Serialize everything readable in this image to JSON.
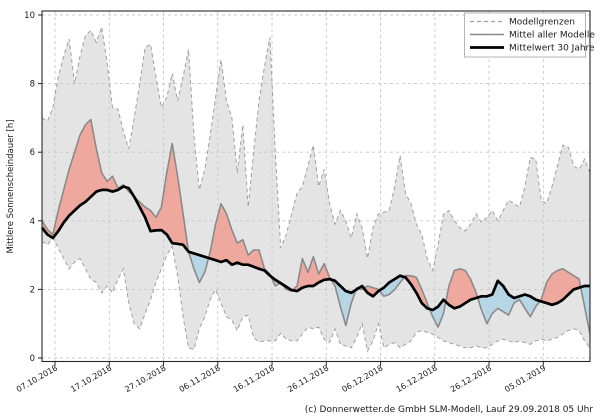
{
  "figure": {
    "ylabel": "Mittlere Sonnenscheindauer [h]",
    "caption": "(c) Donnerwetter.de GmbH SLM-Modell, Lauf 29.09.2018 05 Uhr"
  },
  "legend": {
    "entries": [
      {
        "label": "Modellgrenzen",
        "style": "dashed-gray"
      },
      {
        "label": "Mittel aller Modelle",
        "style": "solid-gray"
      },
      {
        "label": "Mittelwert 30 Jahre",
        "style": "solid-black-thick"
      }
    ]
  },
  "colors": {
    "band_fill": "#e4e4e4",
    "band_edge": "#a0a0a0",
    "above_fill": "#efa89e",
    "below_fill": "#b6d6e6",
    "model_mean_line": "#8a8a8a",
    "climate_mean_line": "#000000",
    "grid": "#c8c8c8",
    "spine": "#262626"
  },
  "chart_data": {
    "type": "line",
    "title": "",
    "xlabel": "",
    "ylabel": "Mittlere Sonnenscheindauer [h]",
    "ylim": [
      0,
      10
    ],
    "yticks": [
      0,
      2,
      4,
      6,
      8,
      10
    ],
    "grid": true,
    "legend_position": "upper right",
    "x_unit": "day",
    "x_start_date": "05.10.2018",
    "x_end_date": "14.01.2019",
    "x_tick_labels": [
      "07.10.2018",
      "17.10.2018",
      "27.10.2018",
      "06.11.2018",
      "16.11.2018",
      "26.11.2018",
      "06.12.2018",
      "16.12.2018",
      "26.12.2018",
      "05.01.2019"
    ],
    "x_tick_day_offsets": [
      2.4,
      12.4,
      22.4,
      32.4,
      42.4,
      52.4,
      62.4,
      72.4,
      82.4,
      92.4
    ],
    "fills": {
      "band_between": [
        "Modellgrenzen Maximum",
        "Modellgrenzen Minimum"
      ],
      "above_rule": "Mittel aller Modelle > Mittelwert 30 Jahre (rot)",
      "below_rule": "Mittel aller Modelle < Mittelwert 30 Jahre (blau)"
    },
    "series": [
      {
        "name": "Modellgrenzen Maximum",
        "style": "dashed",
        "values": [
          7.0,
          6.9,
          7.3,
          8.2,
          8.8,
          9.3,
          8.0,
          8.8,
          9.4,
          9.55,
          9.2,
          9.65,
          8.6,
          7.3,
          7.25,
          6.6,
          6.1,
          7.0,
          8.0,
          9.05,
          9.15,
          8.2,
          7.3,
          7.6,
          8.3,
          7.5,
          8.2,
          9.0,
          6.5,
          4.9,
          5.5,
          6.5,
          7.6,
          8.7,
          7.5,
          7.0,
          5.4,
          6.8,
          4.4,
          6.0,
          7.5,
          8.5,
          9.35,
          6.0,
          3.2,
          3.6,
          4.2,
          4.8,
          5.0,
          5.6,
          6.2,
          5.0,
          5.5,
          4.5,
          3.9,
          4.3,
          4.0,
          3.5,
          4.2,
          3.8,
          2.9,
          3.8,
          4.2,
          4.25,
          4.3,
          5.0,
          5.9,
          4.8,
          4.5,
          3.9,
          3.6,
          2.9,
          2.55,
          3.3,
          4.2,
          4.3,
          4.0,
          3.8,
          3.7,
          3.9,
          4.2,
          3.95,
          4.1,
          4.3,
          4.0,
          4.3,
          4.6,
          4.5,
          4.4,
          5.0,
          5.85,
          5.8,
          4.6,
          4.5,
          5.0,
          5.6,
          6.2,
          6.15,
          5.6,
          5.5,
          5.8,
          5.4
        ]
      },
      {
        "name": "Modellgrenzen Minimum",
        "style": "dashed",
        "values": [
          3.4,
          3.3,
          3.5,
          3.2,
          2.9,
          2.6,
          2.8,
          2.9,
          2.6,
          2.3,
          2.2,
          1.9,
          2.1,
          1.9,
          2.3,
          2.6,
          1.6,
          1.0,
          0.85,
          1.3,
          1.7,
          2.2,
          2.6,
          3.0,
          3.25,
          2.4,
          1.2,
          0.3,
          0.25,
          0.85,
          1.2,
          1.7,
          2.0,
          1.6,
          1.2,
          1.1,
          0.8,
          1.2,
          1.25,
          0.6,
          0.47,
          0.5,
          0.5,
          0.5,
          0.72,
          0.55,
          0.5,
          0.5,
          0.7,
          0.9,
          0.85,
          0.9,
          0.55,
          0.45,
          0.85,
          0.4,
          0.35,
          0.3,
          0.6,
          1.0,
          0.2,
          0.5,
          1.0,
          0.3,
          0.4,
          0.45,
          0.3,
          0.4,
          0.5,
          0.75,
          0.8,
          0.75,
          0.7,
          0.6,
          0.5,
          0.45,
          0.4,
          0.35,
          0.3,
          0.3,
          0.35,
          0.3,
          0.3,
          0.4,
          0.5,
          0.55,
          0.5,
          0.45,
          0.5,
          0.45,
          0.4,
          0.5,
          0.55,
          0.5,
          0.55,
          0.6,
          0.7,
          0.8,
          0.85,
          0.8,
          0.5,
          0.3
        ]
      },
      {
        "name": "Mittel aller Modelle",
        "style": "solid",
        "values": [
          4.0,
          3.75,
          3.6,
          4.3,
          4.9,
          5.5,
          6.0,
          6.5,
          6.8,
          6.95,
          6.1,
          5.4,
          5.15,
          5.3,
          4.95,
          5.05,
          4.85,
          4.7,
          4.55,
          4.4,
          4.3,
          4.1,
          4.4,
          5.4,
          6.25,
          5.3,
          4.2,
          3.1,
          2.6,
          2.2,
          2.5,
          3.1,
          3.9,
          4.5,
          4.2,
          3.73,
          3.35,
          3.45,
          3.0,
          3.15,
          3.15,
          2.6,
          2.45,
          2.1,
          2.2,
          2.0,
          1.95,
          2.1,
          2.9,
          2.5,
          2.95,
          2.45,
          2.75,
          2.35,
          2.1,
          1.5,
          0.95,
          1.6,
          2.05,
          2.0,
          2.1,
          2.05,
          2.0,
          1.8,
          1.85,
          2.0,
          2.2,
          2.4,
          2.4,
          2.35,
          2.0,
          1.6,
          1.2,
          0.9,
          1.3,
          2.1,
          2.55,
          2.6,
          2.55,
          2.3,
          1.9,
          1.4,
          1.0,
          1.3,
          1.45,
          1.35,
          1.25,
          1.6,
          1.7,
          1.45,
          1.2,
          1.5,
          1.7,
          2.2,
          2.45,
          2.55,
          2.6,
          2.5,
          2.4,
          2.3,
          1.5,
          0.7
        ]
      },
      {
        "name": "Mittelwert 30 Jahre",
        "style": "solid-thick",
        "values": [
          3.8,
          3.6,
          3.5,
          3.7,
          3.95,
          4.15,
          4.3,
          4.45,
          4.55,
          4.7,
          4.85,
          4.9,
          4.9,
          4.85,
          4.9,
          5.0,
          4.95,
          4.7,
          4.4,
          4.1,
          3.7,
          3.72,
          3.73,
          3.6,
          3.35,
          3.33,
          3.3,
          3.1,
          3.05,
          3.0,
          2.95,
          2.9,
          2.85,
          2.8,
          2.85,
          2.72,
          2.78,
          2.72,
          2.72,
          2.66,
          2.6,
          2.55,
          2.4,
          2.28,
          2.18,
          2.08,
          1.98,
          1.95,
          2.05,
          2.1,
          2.1,
          2.2,
          2.28,
          2.3,
          2.25,
          2.1,
          1.95,
          1.9,
          2.0,
          2.1,
          1.9,
          1.8,
          1.95,
          2.05,
          2.2,
          2.3,
          2.4,
          2.35,
          2.15,
          1.9,
          1.6,
          1.45,
          1.4,
          1.5,
          1.7,
          1.55,
          1.45,
          1.5,
          1.6,
          1.7,
          1.75,
          1.8,
          1.8,
          1.85,
          2.25,
          2.1,
          1.85,
          1.75,
          1.8,
          1.85,
          1.8,
          1.7,
          1.65,
          1.6,
          1.55,
          1.6,
          1.7,
          1.85,
          2.0,
          2.05,
          2.1,
          2.1
        ]
      }
    ]
  }
}
